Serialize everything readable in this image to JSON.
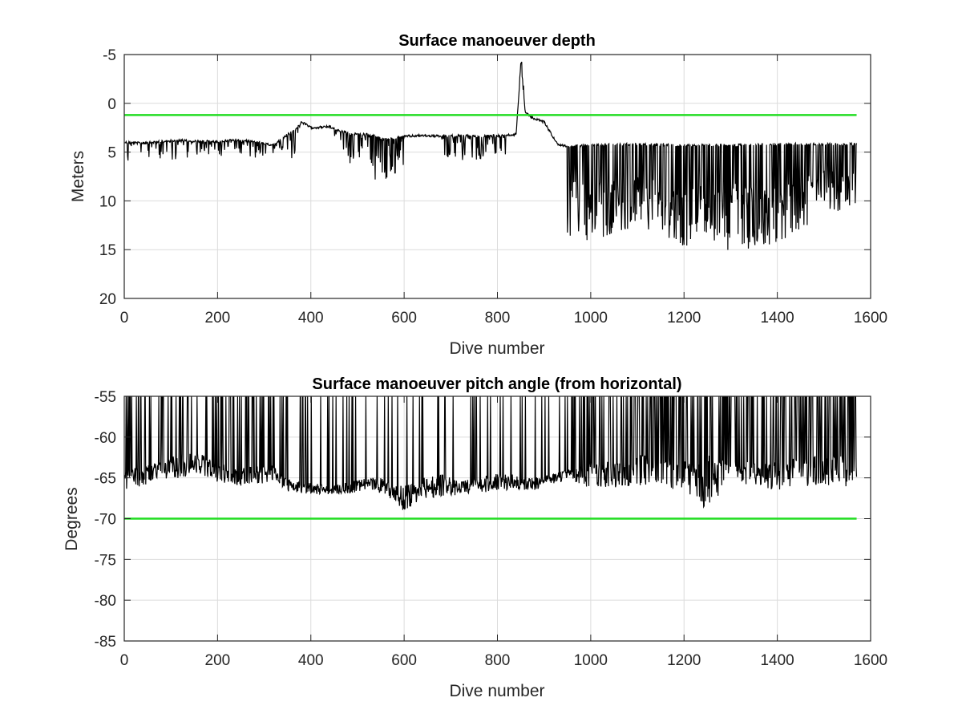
{
  "chart_data": [
    {
      "type": "line",
      "title": "Surface manoeuver depth",
      "xlabel": "Dive number",
      "ylabel": "Meters",
      "xlim": [
        0,
        1600
      ],
      "ylim": [
        -5,
        20
      ],
      "y_reversed": true,
      "x_ticks": [
        "0",
        "200",
        "400",
        "600",
        "800",
        "1000",
        "1200",
        "1400",
        "1600"
      ],
      "y_ticks": [
        "-5",
        "0",
        "5",
        "10",
        "15",
        "20"
      ],
      "grid": true,
      "series": [
        {
          "color": "#000000",
          "x": [
            1,
            40,
            80,
            120,
            160,
            200,
            240,
            280,
            320,
            350,
            370,
            380,
            400,
            440,
            480,
            520,
            560,
            600,
            640,
            680,
            720,
            760,
            800,
            840,
            850,
            860,
            875,
            900,
            930,
            950,
            1000,
            1100,
            1200,
            1300,
            1400,
            1500,
            1570
          ],
          "y_base": [
            4.0,
            4.1,
            3.9,
            3.8,
            3.9,
            3.9,
            3.8,
            3.9,
            4.3,
            3.2,
            2.6,
            1.9,
            2.5,
            2.4,
            3.1,
            3.2,
            3.7,
            3.4,
            3.3,
            3.4,
            3.3,
            3.4,
            3.3,
            3.2,
            -3.7,
            1.0,
            1.5,
            1.9,
            4.3,
            4.4,
            4.3,
            4.2,
            4.3,
            4.3,
            4.2,
            4.2,
            4.2
          ],
          "y_extreme": [
            6.5,
            5.7,
            6.2,
            5.8,
            5.2,
            5.5,
            5.2,
            5.6,
            5.3,
            5.3,
            6.7,
            2.0,
            2.5,
            2.4,
            6.0,
            8.3,
            8.0,
            6.4,
            6.3,
            5.7,
            6.0,
            5.8,
            5.7,
            5.5,
            3.5,
            3.8,
            1.8,
            1.9,
            4.3,
            13.6,
            14.4,
            12.5,
            14.8,
            15.2,
            14.6,
            11.5,
            11.0
          ]
        },
        {
          "name": "",
          "color": "#22dd22",
          "x": [
            0,
            1570
          ],
          "values": [
            1.2,
            1.2
          ]
        }
      ]
    },
    {
      "type": "line",
      "title": "Surface manoeuver pitch angle (from horizontal)",
      "xlabel": "Dive number",
      "ylabel": "Degrees",
      "xlim": [
        0,
        1600
      ],
      "ylim": [
        -85,
        -55
      ],
      "x_ticks": [
        "0",
        "200",
        "400",
        "600",
        "800",
        "1000",
        "1200",
        "1400",
        "1600"
      ],
      "y_ticks": [
        "-55",
        "-60",
        "-65",
        "-70",
        "-75",
        "-80",
        "-85"
      ],
      "grid": true,
      "series": [
        {
          "color": "#000000",
          "x": [
            1,
            40,
            80,
            120,
            160,
            200,
            240,
            280,
            320,
            360,
            400,
            440,
            480,
            520,
            560,
            600,
            640,
            680,
            720,
            760,
            800,
            840,
            880,
            920,
            950,
            1000,
            1100,
            1200,
            1250,
            1300,
            1400,
            1500,
            1570
          ],
          "y_low": [
            -66.5,
            -66.0,
            -65.5,
            -65.0,
            -64.5,
            -65.5,
            -66.0,
            -65.8,
            -65.5,
            -67.0,
            -67.0,
            -67.0,
            -67.0,
            -66.5,
            -67.0,
            -69.2,
            -67.5,
            -67.5,
            -67.0,
            -67.0,
            -66.5,
            -66.5,
            -66.5,
            -66.0,
            -65.0,
            -66.5,
            -66.0,
            -66.5,
            -69.5,
            -65.5,
            -66.5,
            -66.0,
            -66.5
          ],
          "y_base": [
            -64.0,
            -63.5,
            -63.0,
            -62.0,
            -62.0,
            -63.0,
            -64.0,
            -63.5,
            -63.5,
            -65.5,
            -65.5,
            -66.0,
            -65.5,
            -65.0,
            -65.0,
            -66.0,
            -65.0,
            -64.5,
            -65.5,
            -64.8,
            -64.5,
            -64.5,
            -65.0,
            -64.5,
            -64.0,
            -63.0,
            -62.0,
            -63.0,
            -62.0,
            -63.0,
            -63.0,
            -62.0,
            -62.5
          ],
          "spike_top": -55
        },
        {
          "name": "",
          "color": "#22dd22",
          "x": [
            0,
            1570
          ],
          "values": [
            -70,
            -70
          ]
        }
      ]
    }
  ]
}
